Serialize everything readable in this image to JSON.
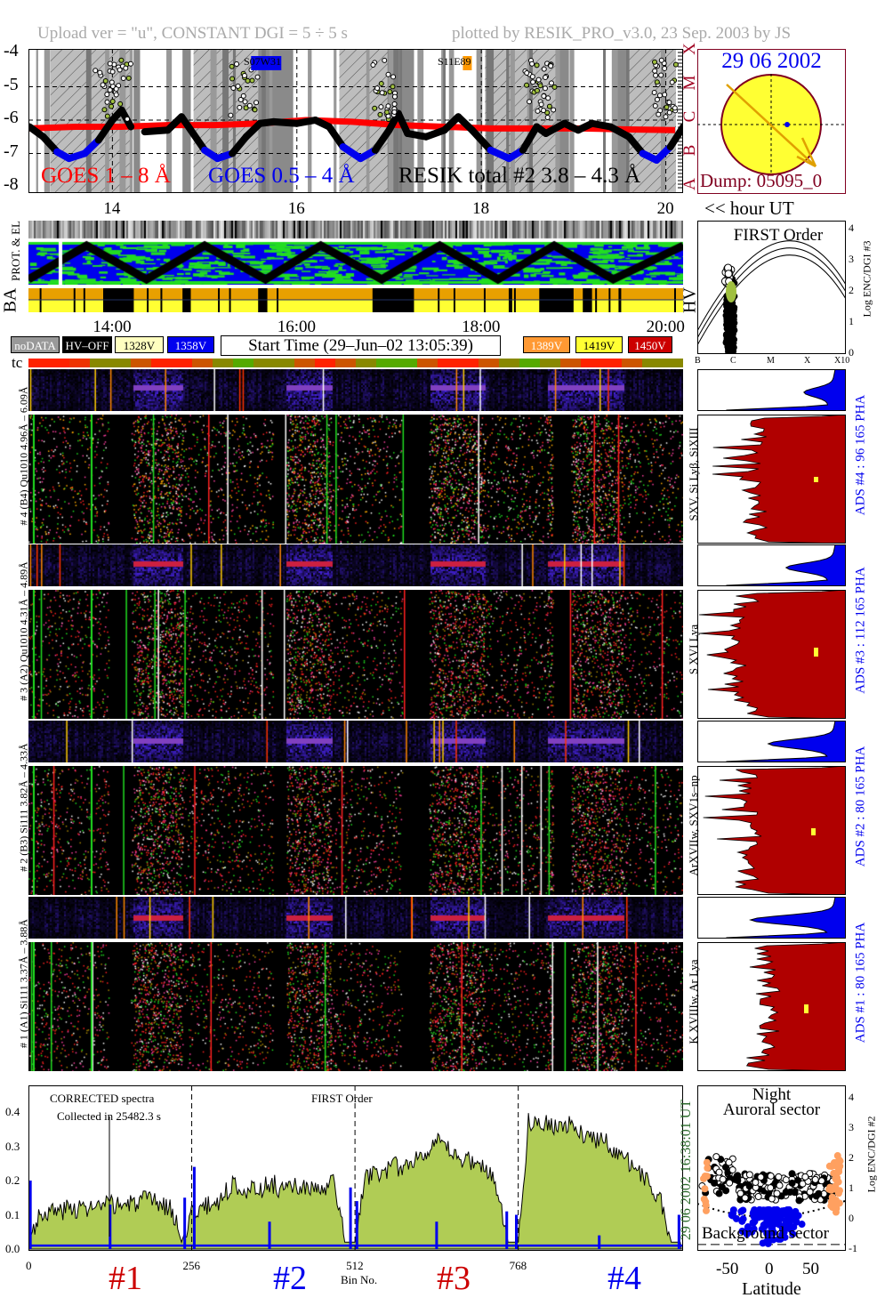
{
  "header": {
    "left": "Upload ver = \"u\", CONSTANT  DGI =   5 ÷  5 s",
    "right": "plotted by RESIK_PRO_v3.0, 23 Sep. 2003 by JS"
  },
  "lightcurve": {
    "y_ticks": [
      "-4",
      "-5",
      "-6",
      "-7",
      "-8"
    ],
    "x_ticks": [
      "14",
      "16",
      "18",
      "20"
    ],
    "x_unit": "<< hour UT",
    "class_letters": [
      "X",
      "M",
      "C",
      "B",
      "A"
    ],
    "legend": {
      "goes_long": "GOES 1 – 8 Å",
      "goes_short": "GOES 0.5 – 4 Å",
      "resik": "RESIK total #2  3.8 – 4.3 Å"
    },
    "annotations": [
      {
        "text": "S07W31",
        "hour": 15.6,
        "color": "#0000ee"
      },
      {
        "text": "S11E89",
        "hour": 17.8,
        "color": "#ff9900"
      }
    ]
  },
  "sun": {
    "date": "29 06 2002",
    "dump": "Dump: 05095_0",
    "disk_color": "#ffff33",
    "rim_color": "#800020"
  },
  "prot_panel": {
    "label": "PROT. & EL",
    "hv_label": "BA",
    "hv_side": "HV",
    "time_ticks": [
      "14:00",
      "16:00",
      "18:00",
      "20:00"
    ]
  },
  "legend_boxes": [
    {
      "label": "noDATA",
      "bg": "#999999",
      "fg": "#ffffff"
    },
    {
      "label": "HV–OFF",
      "bg": "#000000",
      "fg": "#ffffff"
    },
    {
      "label": "1328V",
      "bg": "#ffffc0",
      "fg": "#000000"
    },
    {
      "label": "1358V",
      "bg": "#0000ee",
      "fg": "#ffffff"
    },
    {
      "label": "1389V",
      "bg": "#ff9933",
      "fg": "#ffffff"
    },
    {
      "label": "1419V",
      "bg": "#ffff33",
      "fg": "#000000"
    },
    {
      "label": "1450V",
      "bg": "#cc0000",
      "fg": "#ffffff"
    }
  ],
  "start_time": "Start Time (29–Jun–02 13:05:39)",
  "tc": {
    "label": "tc",
    "colors": [
      "#ff2200",
      "#ff2200",
      "#ee3300",
      "#888800",
      "#888800",
      "#cc5500",
      "#ff2200",
      "#ff2200",
      "#cc5500",
      "#888800",
      "#55aa00",
      "#888800",
      "#888800",
      "#cc5500",
      "#ff2200",
      "#cc5500",
      "#888800",
      "#55aa00",
      "#55aa00",
      "#cc5500",
      "#ff2200",
      "#ff2200",
      "#cc5500",
      "#888800",
      "#55aa00",
      "#888800",
      "#cc5500",
      "#ff2200",
      "#ff2200",
      "#cc5500",
      "#888800",
      "#888800"
    ]
  },
  "first_order": {
    "title": "FIRST Order",
    "y_label": "Log ENC/DGI #3",
    "y_ticks": [
      "0",
      "1",
      "2",
      "3",
      "4"
    ],
    "x_ticks": [
      "B",
      "C",
      "M",
      "X",
      "X10"
    ]
  },
  "channels": [
    {
      "left": "# 4 (B4) Qu1010 4.96Å – 6.09Å",
      "lines": "SXV, Si Lyβ, SiXIII",
      "ads": "ADS #4 :   96 165   PHA"
    },
    {
      "left": "# 3 (A2) Qu1010 4.31Å – 4.89Å",
      "lines": "S XVI Lya",
      "ads": "ADS #3 :   112 165   PHA"
    },
    {
      "left": "# 2 (B3) Si111 3.82Å – 4.33Å",
      "lines": "ArXVIIw, SXV1s–np",
      "ads": "ADS #2 :   80 165   PHA"
    },
    {
      "left": "# 1 (A1) Si111 3.37Å – 3.88Å",
      "lines": "K XVIIIw, Ar Lya",
      "ads": "ADS #1 :   80 165   PHA"
    }
  ],
  "spectrum": {
    "note1": "CORRECTED spectra",
    "note2": "Collected in 25482.3 s",
    "order": "FIRST Order",
    "xlabel": "Bin No.",
    "x_ticks": [
      "0",
      "256",
      "512",
      "768"
    ],
    "y_ticks": [
      "0.0",
      "0.1",
      "0.2",
      "0.3",
      "0.4"
    ],
    "channel_labels": [
      {
        "text": "#1",
        "color": "#cc0000"
      },
      {
        "text": "#2",
        "color": "#0000ee"
      },
      {
        "text": "#3",
        "color": "#cc0000"
      },
      {
        "text": "#4",
        "color": "#0000ee"
      }
    ],
    "stamp": "29 06 2002   16:38:01 UT"
  },
  "latitude": {
    "title1": "Night",
    "title2": "Auroral sector",
    "bottom": "Background sector",
    "xlabel": "Latitude",
    "x_ticks": [
      "-50",
      "0",
      "50"
    ],
    "y_label": "Log ENC/DGI #2",
    "y_ticks": [
      "-1",
      "0",
      "1",
      "2",
      "3",
      "4"
    ]
  },
  "chart_data": [
    {
      "type": "line",
      "title": "",
      "xlabel": "hour UT",
      "ylabel": "",
      "xlim": [
        13.09,
        20.19
      ],
      "ylim": [
        -8,
        -4
      ],
      "grid": true,
      "series": [
        {
          "name": "GOES 1 – 8 Å",
          "color": "#ff0000",
          "x": [
            13.1,
            13.6,
            14.1,
            14.6,
            15.1,
            15.6,
            16.1,
            16.6,
            17.1,
            17.6,
            18.1,
            18.6,
            19.1,
            19.6,
            20.1
          ],
          "y": [
            -6.25,
            -6.2,
            -6.2,
            -6.15,
            -6.15,
            -6.1,
            -6.0,
            -6.05,
            -6.15,
            -6.2,
            -6.25,
            -6.25,
            -6.25,
            -6.28,
            -6.3
          ]
        },
        {
          "name": "RESIK total #2  3.8 – 4.3 Å",
          "color": "#000000",
          "x": [
            13.1,
            13.25,
            13.4,
            13.53,
            13.7,
            13.85,
            14.0,
            14.1,
            14.2,
            14.35,
            14.6,
            14.75,
            14.85,
            15.0,
            15.14,
            15.3,
            15.45,
            15.6,
            15.75,
            16.0,
            16.2,
            16.35,
            16.5,
            16.69,
            16.85,
            17.0,
            17.1,
            17.2,
            17.4,
            17.6,
            17.75,
            17.9,
            18.1,
            18.3,
            18.45,
            18.6,
            18.7,
            18.9,
            19.05,
            19.2,
            19.4,
            19.6,
            19.75,
            19.9,
            20.05,
            20.19
          ],
          "y": [
            -6.2,
            -6.5,
            -6.95,
            -7.15,
            -7.0,
            -6.6,
            -6.0,
            -5.7,
            -6.2,
            -6.35,
            -6.3,
            -5.9,
            -6.3,
            -6.9,
            -7.15,
            -7.0,
            -6.5,
            -6.1,
            -6.05,
            -6.1,
            -6.0,
            -6.2,
            -6.8,
            -7.15,
            -6.9,
            -6.3,
            -5.8,
            -6.4,
            -6.5,
            -6.3,
            -5.9,
            -6.3,
            -6.9,
            -7.15,
            -6.9,
            -6.2,
            -6.4,
            -6.1,
            -6.3,
            -6.1,
            -6.2,
            -6.5,
            -7.0,
            -7.2,
            -6.8,
            -6.2
          ]
        }
      ],
      "night_intervals": [
        [
          13.33,
          14.21
        ],
        [
          14.88,
          15.58
        ],
        [
          16.46,
          17.07
        ],
        [
          18.04,
          18.81
        ],
        [
          19.58,
          20.11
        ]
      ],
      "gap_intervals": [
        [
          14.23,
          14.3
        ],
        [
          14.76,
          14.85
        ],
        [
          15.58,
          15.96
        ],
        [
          17.02,
          17.27
        ],
        [
          18.81,
          18.95
        ],
        [
          19.43,
          19.58
        ]
      ],
      "hv_off_intervals": [
        [
          13.9,
          14.22
        ],
        [
          14.76,
          14.85
        ],
        [
          15.58,
          15.68
        ],
        [
          16.82,
          17.27
        ],
        [
          18.64,
          19.0
        ],
        [
          19.1,
          19.2
        ]
      ],
      "orbit_turning_hours": [
        13.09,
        13.72,
        14.37,
        15.0,
        15.66,
        16.26,
        16.92,
        17.55,
        18.18,
        18.79,
        19.43,
        20.19
      ]
    },
    {
      "type": "area",
      "title": "",
      "xlabel": "Bin No.",
      "ylabel": "",
      "xlim": [
        0,
        1024
      ],
      "ylim": [
        0,
        0.48
      ],
      "series": [
        {
          "name": "CORRECTED spectra",
          "color": "#b0cc55",
          "bin_step": 16,
          "values": [
            0.02,
            0.1,
            0.11,
            0.11,
            0.12,
            0.12,
            0.12,
            0.12,
            0.13,
            0.13,
            0.13,
            0.14,
            0.14,
            0.13,
            0.12,
            0.02,
            0.11,
            0.12,
            0.13,
            0.15,
            0.19,
            0.18,
            0.17,
            0.18,
            0.19,
            0.17,
            0.18,
            0.18,
            0.17,
            0.17,
            0.2,
            0.02,
            0.02,
            0.21,
            0.22,
            0.23,
            0.24,
            0.24,
            0.27,
            0.29,
            0.31,
            0.29,
            0.27,
            0.26,
            0.25,
            0.23,
            0.18,
            0.02,
            0.02,
            0.37,
            0.38,
            0.37,
            0.35,
            0.36,
            0.34,
            0.33,
            0.32,
            0.3,
            0.28,
            0.25,
            0.22,
            0.18,
            0.14,
            0.02
          ]
        },
        {
          "name": "background",
          "color": "#0000ee",
          "baseline": 0.01,
          "spikes": [
            [
              3,
              0.2
            ],
            [
              128,
              0.13
            ],
            [
              245,
              0.15
            ],
            [
              260,
              0.24
            ],
            [
              378,
              0.08
            ],
            [
              505,
              0.18
            ],
            [
              515,
              0.14
            ],
            [
              640,
              0.08
            ],
            [
              750,
              0.11
            ],
            [
              765,
              0.1
            ],
            [
              895,
              0.04
            ],
            [
              1020,
              0.1
            ]
          ]
        }
      ]
    }
  ]
}
